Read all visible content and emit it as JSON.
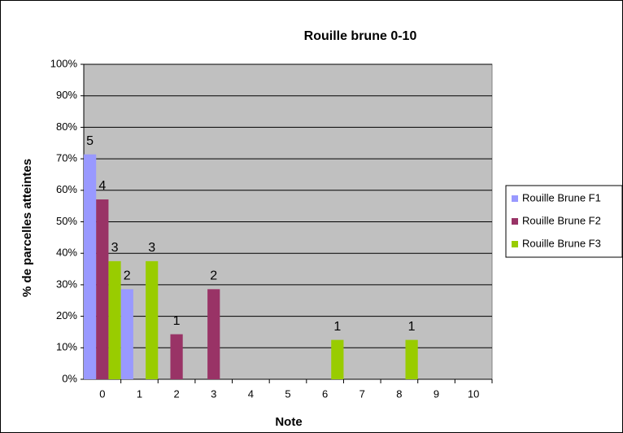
{
  "chart_data": {
    "type": "bar",
    "title": "Rouille brune 0-10",
    "x_label": "Note",
    "y_label": "% de parcelles atteintes",
    "categories": [
      "0",
      "1",
      "2",
      "3",
      "4",
      "5",
      "6",
      "7",
      "8",
      "9",
      "10"
    ],
    "series": [
      {
        "name": "Rouille Brune F1",
        "color": "#9999ff",
        "values": [
          71.4,
          28.6,
          0,
          0,
          0,
          0,
          0,
          0,
          0,
          0,
          0
        ],
        "counts": [
          5,
          2,
          null,
          null,
          null,
          null,
          null,
          null,
          null,
          null,
          null
        ]
      },
      {
        "name": "Rouille Brune F2",
        "color": "#993366",
        "values": [
          57.1,
          0,
          14.3,
          28.6,
          0,
          0,
          0,
          0,
          0,
          0,
          0
        ],
        "counts": [
          4,
          null,
          1,
          2,
          null,
          null,
          null,
          null,
          null,
          null,
          null
        ]
      },
      {
        "name": "Rouille Brune F3",
        "color": "#99cc00",
        "values": [
          37.5,
          37.5,
          0,
          0,
          0,
          0,
          12.5,
          0,
          12.5,
          0,
          0
        ],
        "counts": [
          3,
          3,
          null,
          null,
          null,
          null,
          1,
          null,
          1,
          null,
          null
        ]
      }
    ],
    "ylim": [
      0,
      100
    ],
    "yticks": [
      {
        "value": 0,
        "label": "0%"
      },
      {
        "value": 10,
        "label": "10%"
      },
      {
        "value": 20,
        "label": "20%"
      },
      {
        "value": 30,
        "label": "30%"
      },
      {
        "value": 40,
        "label": "40%"
      },
      {
        "value": 50,
        "label": "50%"
      },
      {
        "value": 60,
        "label": "60%"
      },
      {
        "value": 70,
        "label": "70%"
      },
      {
        "value": 80,
        "label": "80%"
      },
      {
        "value": 90,
        "label": "90%"
      },
      {
        "value": 100,
        "label": "100%"
      }
    ],
    "grid": true,
    "legend": "right"
  }
}
